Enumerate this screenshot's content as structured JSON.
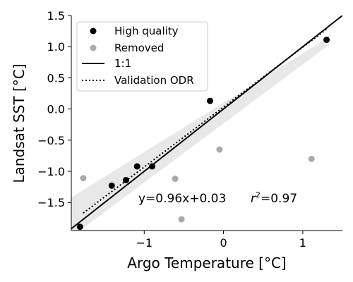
{
  "chart_data": {
    "type": "scatter",
    "xlabel": "Argo Temperature [°C]",
    "ylabel": "Landsat SST [°C]",
    "xlim": [
      -1.92,
      1.5
    ],
    "ylim": [
      -1.95,
      1.5
    ],
    "xticks": [
      -1,
      0,
      1
    ],
    "xtick_labels": [
      "−1",
      "0",
      "1"
    ],
    "yticks": [
      -1.5,
      -1.0,
      -0.5,
      0.0,
      0.5,
      1.0,
      1.5
    ],
    "ytick_labels": [
      "−1.5",
      "−1.0",
      "−0.5",
      "0.0",
      "0.5",
      "1.0",
      "1.5"
    ],
    "grid": false,
    "legend_position": "top-left",
    "series": [
      {
        "name": "High quality",
        "kind": "points",
        "color": "#000000",
        "points": [
          [
            -1.81,
            -1.89
          ],
          [
            -1.41,
            -1.23
          ],
          [
            -1.23,
            -1.14
          ],
          [
            -1.09,
            -0.92
          ],
          [
            -0.9,
            -0.92
          ],
          [
            -0.17,
            0.13
          ],
          [
            1.3,
            1.11
          ]
        ]
      },
      {
        "name": "Removed",
        "kind": "points",
        "color": "#aaaaaa",
        "points": [
          [
            -1.77,
            -1.11
          ],
          [
            -0.61,
            -1.12
          ],
          [
            -0.53,
            -1.77
          ],
          [
            -0.05,
            -0.65
          ],
          [
            1.11,
            -0.8
          ]
        ]
      },
      {
        "name": "1:1",
        "kind": "line",
        "style": "solid",
        "color": "#000000",
        "x": [
          -1.92,
          1.5
        ],
        "y": [
          -1.92,
          1.5
        ]
      },
      {
        "name": "Validation ODR",
        "kind": "line",
        "style": "dotted",
        "color": "#000000",
        "x": [
          -1.77,
          1.3
        ],
        "y": [
          -1.67,
          1.28
        ]
      }
    ],
    "confidence_band": {
      "color": "#e8e8e8",
      "x": [
        -1.92,
        1.3
      ],
      "upper": [
        -1.42,
        1.13
      ],
      "lower": [
        -2.05,
        1.0
      ]
    },
    "annotation": {
      "fit": "y=0.96x+0.03",
      "r2_label": "r",
      "r2_sup": "2",
      "r2_value": "=0.97"
    }
  }
}
